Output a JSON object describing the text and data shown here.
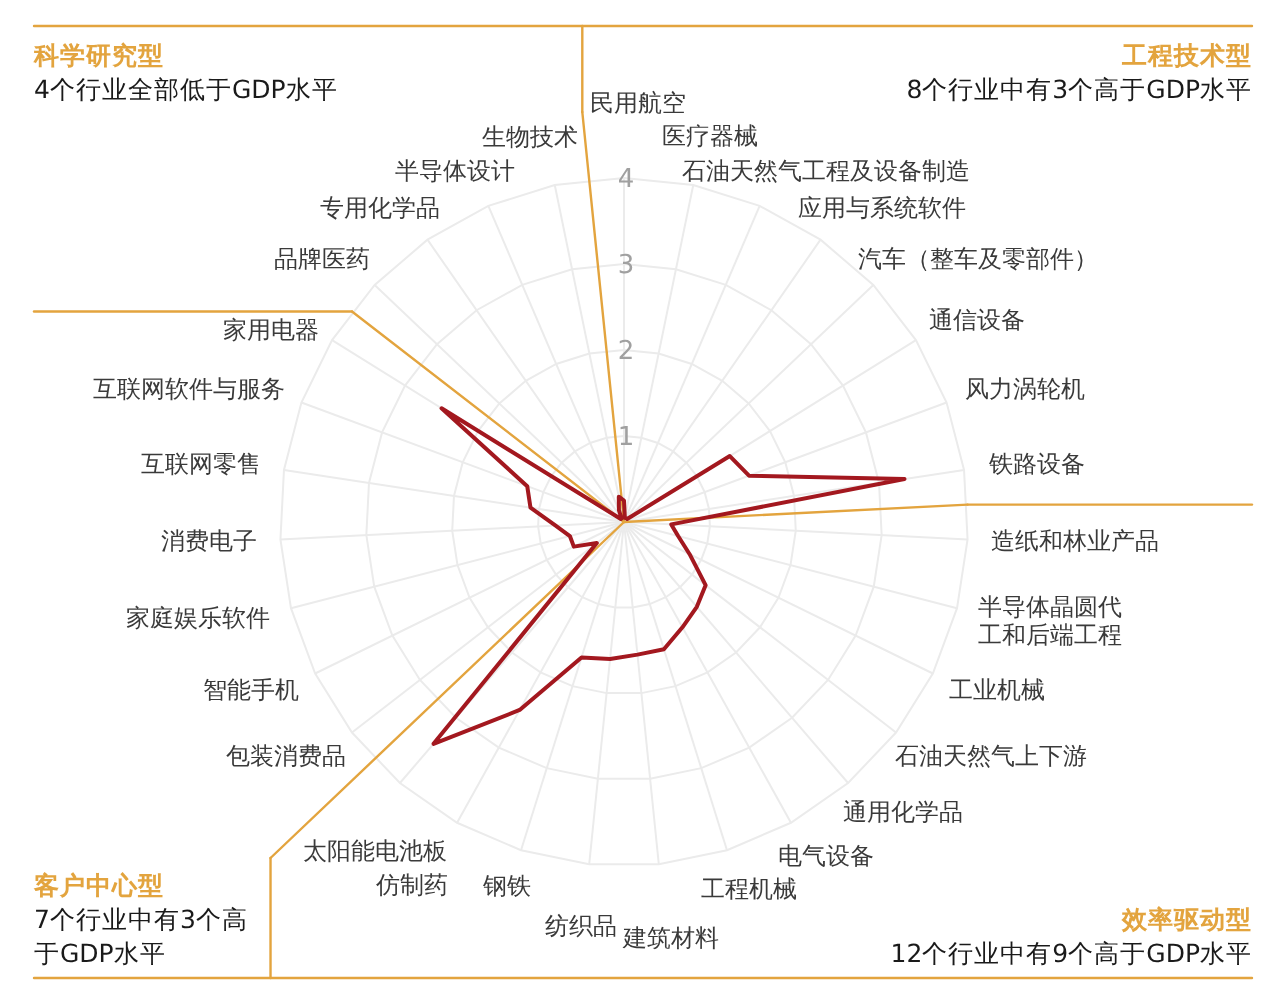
{
  "chart_data": {
    "type": "radar",
    "categories": [
      "民用航空",
      "医疗器械",
      "石油天然气工程及设备制造",
      "应用与系统软件",
      "汽车（整车及零部件）",
      "通信设备",
      "风力涡轮机",
      "铁路设备",
      "造纸和林业产品",
      "半导体晶圆代工和后端工程",
      "工业机械",
      "石油天然气上下游",
      "通用化学品",
      "电气设备",
      "工程机械",
      "建筑材料",
      "纺织品",
      "钢铁",
      "仿制药",
      "太阳能电池板",
      "包装消费品",
      "智能手机",
      "家庭娱乐软件",
      "消费电子",
      "互联网零售",
      "互联网软件与服务",
      "家用电器",
      "品牌医药",
      "专用化学品",
      "半导体设计",
      "生物技术"
    ],
    "series": [
      {
        "color": "#a3181f",
        "values": [
          0.25,
          0.05,
          0.05,
          0.05,
          0.05,
          1.45,
          1.55,
          3.3,
          0.55,
          0.65,
          0.85,
          1.2,
          1.3,
          1.4,
          1.55,
          1.55,
          1.6,
          1.65,
          2.5,
          3.4,
          0.4,
          0.65,
          0.65,
          0.8,
          1.1,
          1.2,
          2.5,
          0.05,
          0.05,
          0.15,
          0.3
        ]
      }
    ],
    "ylim": [
      0,
      4
    ],
    "yticks": [
      1,
      2,
      3,
      4
    ],
    "grid": true,
    "annotations": [
      "科学研究型",
      "4个行业全部低于GDP水平",
      "工程技术型",
      "8个行业中有3个高于GDP水平",
      "客户中心型",
      "7个行业中有3个高于GDP水平",
      "效率驱动型",
      "12个行业中有9个高于GDP水平"
    ]
  }
}
